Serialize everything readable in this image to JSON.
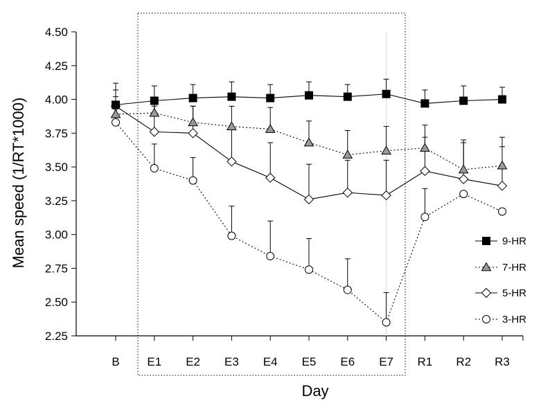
{
  "chart_data": {
    "type": "line",
    "title": "",
    "xlabel": "Day",
    "ylabel": "Mean speed (1/RT*1000)",
    "categories": [
      "B",
      "E1",
      "E2",
      "E3",
      "E4",
      "E5",
      "E6",
      "E7",
      "R1",
      "R2",
      "R3"
    ],
    "ylim": [
      2.25,
      4.5
    ],
    "yticks": [
      "2.25",
      "2.50",
      "2.75",
      "3.00",
      "3.25",
      "3.50",
      "3.75",
      "4.00",
      "4.25",
      "4.50"
    ],
    "grid": false,
    "legend_position": "right",
    "annotations": [
      "dotted box around E1–E7"
    ],
    "series": [
      {
        "name": "9-HR",
        "marker": "square-filled",
        "line": "solid",
        "values": [
          3.96,
          3.99,
          4.01,
          4.02,
          4.01,
          4.03,
          4.02,
          4.04,
          3.97,
          3.99,
          4.0
        ],
        "error_up": [
          0.16,
          0.11,
          0.1,
          0.11,
          0.1,
          0.1,
          0.09,
          0.11,
          0.1,
          0.11,
          0.09
        ]
      },
      {
        "name": "7-HR",
        "marker": "triangle-gray",
        "line": "dotted",
        "values": [
          3.89,
          3.9,
          3.83,
          3.8,
          3.78,
          3.68,
          3.59,
          3.62,
          3.64,
          3.48,
          3.51
        ],
        "error_up": [
          0.13,
          0.09,
          0.12,
          0.15,
          0.16,
          0.16,
          0.18,
          0.18,
          0.17,
          0.22,
          0.21
        ]
      },
      {
        "name": "5-HR",
        "marker": "diamond-open",
        "line": "solid",
        "values": [
          3.95,
          3.76,
          3.75,
          3.54,
          3.42,
          3.26,
          3.31,
          3.29,
          3.47,
          3.41,
          3.36
        ],
        "error_up": [
          0.12,
          0.19,
          0.2,
          0.26,
          0.26,
          0.26,
          0.24,
          0.26,
          0.25,
          0.27,
          0.29
        ]
      },
      {
        "name": "3-HR",
        "marker": "circle-open",
        "line": "dotted",
        "values": [
          3.83,
          3.49,
          3.4,
          2.99,
          2.84,
          2.74,
          2.59,
          2.35,
          3.13,
          3.3,
          3.17
        ],
        "error_up": [
          0.1,
          0.18,
          0.17,
          0.22,
          0.26,
          0.23,
          0.23,
          0.22,
          0.21,
          0.0,
          0.0
        ]
      }
    ]
  }
}
